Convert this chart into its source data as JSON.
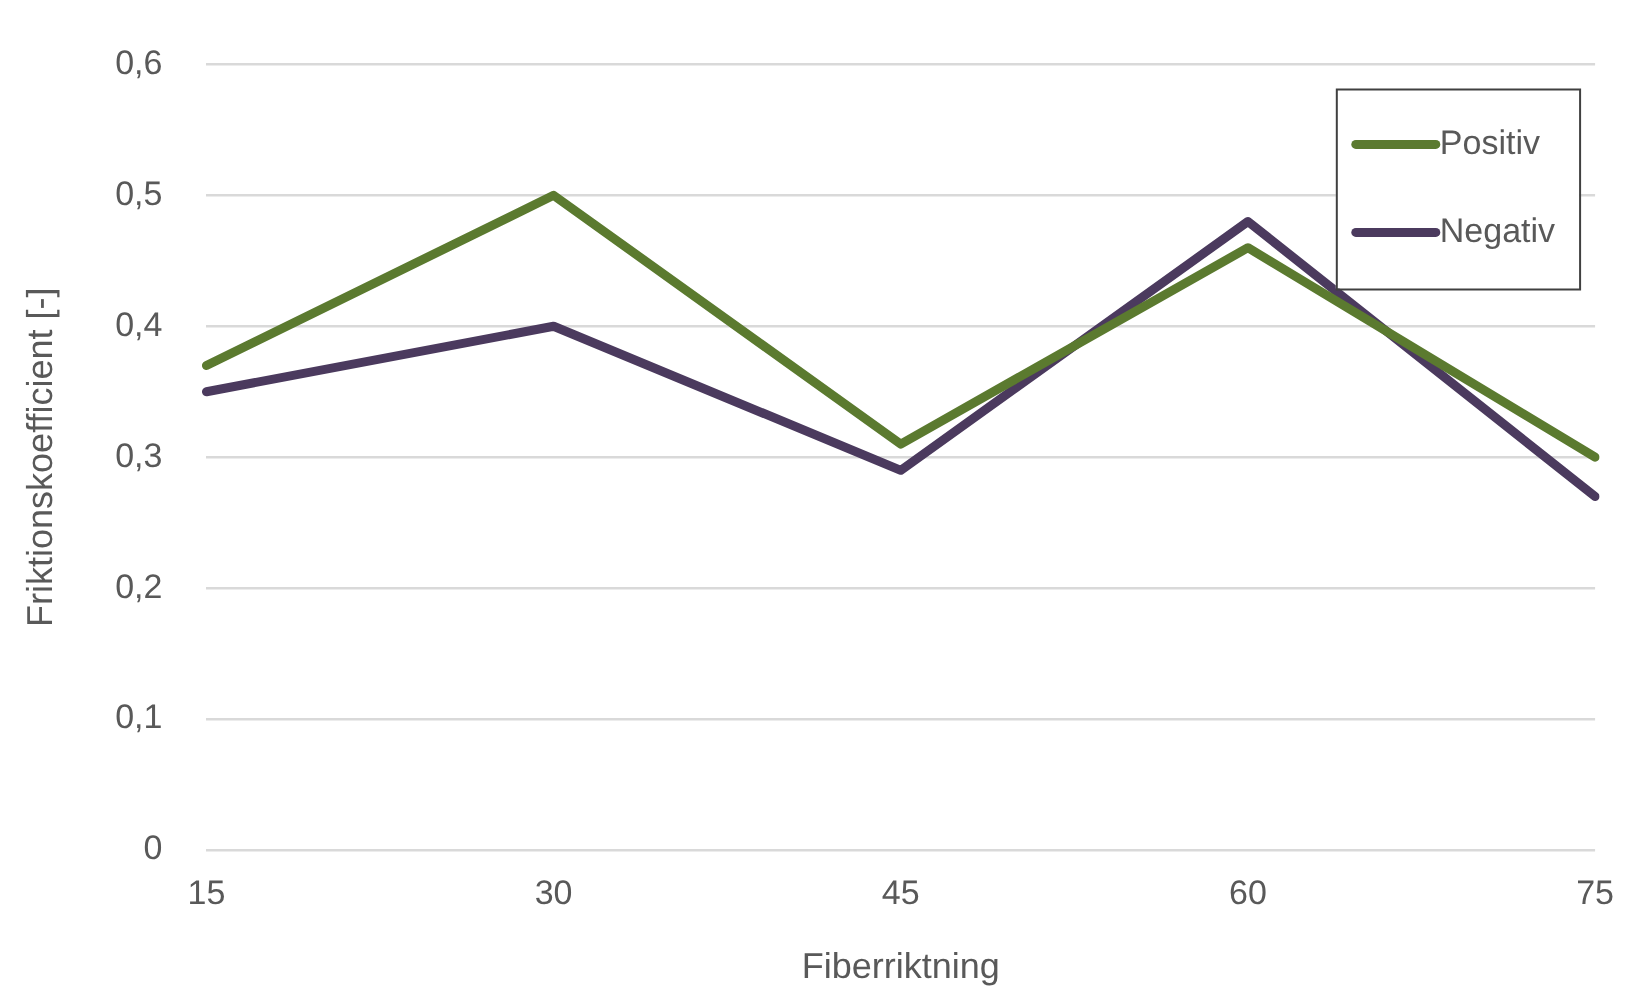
{
  "chart_data": {
    "type": "line",
    "xlabel": "Fiberriktning",
    "ylabel": "Friktionskoefficient [-]",
    "categories": [
      "15",
      "30",
      "45",
      "60",
      "75"
    ],
    "series": [
      {
        "name": "Positiv",
        "color": "#5b7a2f",
        "values": [
          0.37,
          0.5,
          0.31,
          0.46,
          0.3
        ]
      },
      {
        "name": "Negativ",
        "color": "#4b3a5e",
        "values": [
          0.35,
          0.4,
          0.29,
          0.48,
          0.27
        ]
      }
    ],
    "ylim": [
      0,
      0.6
    ],
    "yticks": [
      {
        "value": 0,
        "label": "0"
      },
      {
        "value": 0.1,
        "label": "0,1"
      },
      {
        "value": 0.2,
        "label": "0,2"
      },
      {
        "value": 0.3,
        "label": "0,3"
      },
      {
        "value": 0.4,
        "label": "0,4"
      },
      {
        "value": 0.5,
        "label": "0,5"
      },
      {
        "value": 0.6,
        "label": "0,6"
      }
    ],
    "grid": "y",
    "legend": "top right",
    "marker": "none",
    "line_style": "solid"
  }
}
